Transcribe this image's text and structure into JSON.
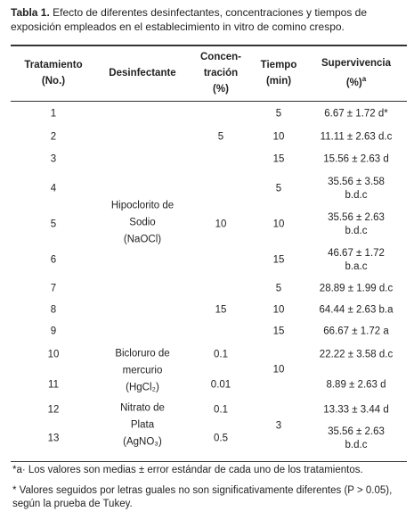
{
  "caption": {
    "label": "Tabla 1.",
    "text": "Efecto de diferentes desinfectantes, concentraciones y tiempos de exposición empleados en el establecimiento in vitro de comino crespo."
  },
  "table": {
    "headers": [
      [
        "Tratamiento",
        "(No.)"
      ],
      [
        "Desinfectante"
      ],
      [
        "Concen-",
        "tración",
        "(%)"
      ],
      [
        "Tiempo",
        "(min)"
      ],
      [
        "Supervivencia",
        "(%)"
      ]
    ],
    "header_sup": "a",
    "treatments": [
      "1",
      "2",
      "3",
      "4",
      "5",
      "6",
      "7",
      "8",
      "9",
      "10",
      "11",
      "12",
      "13"
    ],
    "disinfectants": [
      [
        "Hipoclorito de",
        "Sodio",
        "(NaOCl)"
      ],
      [
        "Bicloruro de",
        "mercurio",
        "(HgCl₂)"
      ],
      [
        "Nitrato de",
        "Plata",
        "(AgNO₃)"
      ]
    ],
    "concentrations": [
      "5",
      "10",
      "15",
      "0.1",
      "0.01",
      "0.1",
      "0.5"
    ],
    "times": [
      "5",
      "10",
      "15",
      "5",
      "10",
      "15",
      "5",
      "10",
      "15",
      "10",
      "3"
    ],
    "survival": [
      [
        "6.67 ± 1.72 d*"
      ],
      [
        "11.11 ± 2.63 d.c"
      ],
      [
        "15.56 ± 2.63 d"
      ],
      [
        "35.56 ± 3.58",
        "b.d.c"
      ],
      [
        "35.56 ± 2.63",
        "b.d.c"
      ],
      [
        "46.67 ± 1.72",
        "b.a.c"
      ],
      [
        "28.89 ± 1.99 d.c"
      ],
      [
        "64.44 ± 2.63 b.a"
      ],
      [
        "66.67 ± 1.72 a"
      ],
      [
        "22.22 ± 3.58 d.c"
      ],
      [
        "8.89 ± 2.63 d"
      ],
      [
        "13.33 ± 3.44 d"
      ],
      [
        "35.56 ± 2.63",
        "b.d.c"
      ]
    ]
  },
  "footnotes": [
    "*a· Los valores son medias ± error estándar de cada uno de los tratamientos.",
    "* Valores seguidos por letras guales no son significativamente diferentes (P > 0.05), según la prueba de Tukey."
  ]
}
